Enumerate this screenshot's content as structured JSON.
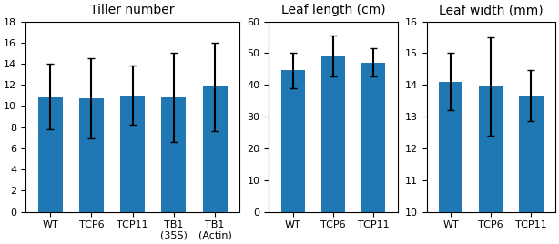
{
  "chart_data": [
    {
      "type": "bar",
      "title": "Tiller number",
      "categories": [
        "WT",
        "TCP6",
        "TCP11",
        "TB1\n(35S)",
        "TB1\n(Actin)"
      ],
      "values": [
        10.9,
        10.7,
        11.0,
        10.8,
        11.8
      ],
      "errors": [
        3.1,
        3.8,
        2.8,
        4.2,
        4.2
      ],
      "ylim": [
        0,
        18
      ],
      "yticks": [
        0,
        2,
        4,
        6,
        8,
        10,
        12,
        14,
        16,
        18
      ]
    },
    {
      "type": "bar",
      "title": "Leaf length (cm)",
      "categories": [
        "WT",
        "TCP6",
        "TCP11"
      ],
      "values": [
        44.5,
        49.0,
        47.0
      ],
      "errors": [
        5.5,
        6.5,
        4.5
      ],
      "ylim": [
        0,
        60
      ],
      "yticks": [
        0,
        10,
        20,
        30,
        40,
        50,
        60
      ]
    },
    {
      "type": "bar",
      "title": "Leaf width (mm)",
      "categories": [
        "WT",
        "TCP6",
        "TCP11"
      ],
      "values": [
        14.1,
        13.95,
        13.65
      ],
      "errors": [
        0.9,
        1.55,
        0.8
      ],
      "ylim": [
        10,
        16
      ],
      "yticks": [
        10,
        11,
        12,
        13,
        14,
        15,
        16
      ]
    }
  ]
}
